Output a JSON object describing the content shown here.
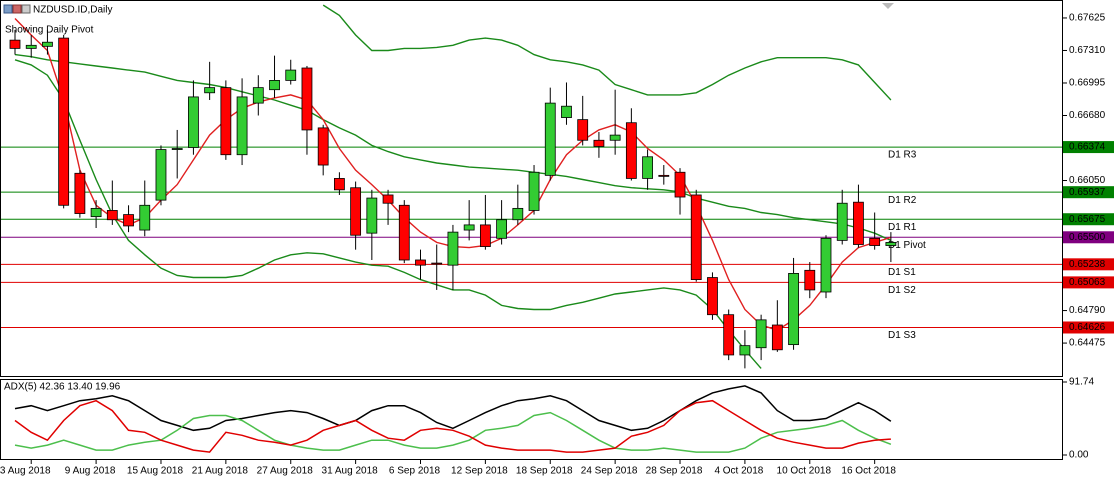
{
  "chart_data": [
    {
      "type": "candlestick",
      "title": "NZDUSD.ID,Daily",
      "subtitle": "Showing Daily Pivot",
      "categories": [
        null,
        "3 Aug 2018",
        null,
        null,
        null,
        "9 Aug 2018",
        null,
        null,
        null,
        "15 Aug 2018",
        null,
        null,
        null,
        "21 Aug 2018",
        null,
        null,
        null,
        "27 Aug 2018",
        null,
        null,
        null,
        "31 Aug 2018",
        null,
        null,
        null,
        "6 Sep 2018",
        null,
        null,
        null,
        "12 Sep 2018",
        null,
        null,
        null,
        "18 Sep 2018",
        null,
        null,
        null,
        "24 Sep 2018",
        null,
        null,
        null,
        "28 Sep 2018",
        null,
        null,
        null,
        "4 Oct 2018",
        null,
        null,
        null,
        "10 Oct 2018",
        null,
        null,
        null,
        "16 Oct 2018",
        null
      ],
      "open": [
        0.6741,
        0.6733,
        0.6735,
        0.6743,
        0.6612,
        0.657,
        0.6576,
        0.6572,
        0.6557,
        0.6586,
        0.6635,
        0.6637,
        0.669,
        0.6695,
        0.663,
        0.668,
        0.6693,
        0.6702,
        0.6714,
        0.6656,
        0.6607,
        0.6598,
        0.6554,
        0.6591,
        0.6581,
        0.6528,
        0.6525,
        0.6523,
        0.6557,
        0.6562,
        0.6549,
        0.6567,
        0.6576,
        0.661,
        0.6666,
        0.6664,
        0.6644,
        0.6644,
        0.6661,
        0.6607,
        0.661,
        0.6613,
        0.6591,
        0.6511,
        0.6475,
        0.6436,
        0.6443,
        0.6465,
        0.6446,
        0.6518,
        0.6497,
        0.6547,
        0.6584,
        0.6549,
        0.6542
      ],
      "high": [
        0.6751,
        0.6746,
        0.6751,
        0.6746,
        0.6615,
        0.6586,
        0.6605,
        0.6581,
        0.6605,
        0.6639,
        0.6654,
        0.6702,
        0.672,
        0.6702,
        0.6704,
        0.6707,
        0.6726,
        0.6722,
        0.6716,
        0.6659,
        0.6613,
        0.6604,
        0.6596,
        0.6596,
        0.6586,
        0.6538,
        0.6543,
        0.6562,
        0.6586,
        0.6591,
        0.6586,
        0.6601,
        0.662,
        0.6695,
        0.67,
        0.6687,
        0.6652,
        0.6693,
        0.6675,
        0.6635,
        0.662,
        0.6617,
        0.6596,
        0.6516,
        0.648,
        0.646,
        0.6475,
        0.6489,
        0.653,
        0.6526,
        0.6552,
        0.6596,
        0.6601,
        0.6574,
        0.6555
      ],
      "low": [
        0.6727,
        0.6724,
        0.6727,
        0.6578,
        0.6569,
        0.6559,
        0.6562,
        0.6555,
        0.6551,
        0.6581,
        0.6607,
        0.663,
        0.6683,
        0.6625,
        0.662,
        0.6668,
        0.6685,
        0.6698,
        0.663,
        0.661,
        0.6591,
        0.6538,
        0.6528,
        0.6562,
        0.6525,
        0.6509,
        0.6499,
        0.6499,
        0.6547,
        0.6538,
        0.6543,
        0.6562,
        0.6572,
        0.6605,
        0.6659,
        0.6639,
        0.6627,
        0.663,
        0.6605,
        0.6596,
        0.6601,
        0.6572,
        0.6507,
        0.647,
        0.6431,
        0.6423,
        0.6431,
        0.6439,
        0.6441,
        0.6491,
        0.6491,
        0.6543,
        0.654,
        0.6538,
        0.6526
      ],
      "close": [
        0.6733,
        0.6736,
        0.6739,
        0.6581,
        0.6573,
        0.6578,
        0.6567,
        0.6561,
        0.6581,
        0.6635,
        0.6636,
        0.6686,
        0.6695,
        0.663,
        0.6686,
        0.6695,
        0.6702,
        0.6712,
        0.6654,
        0.662,
        0.6596,
        0.6552,
        0.6588,
        0.6583,
        0.6528,
        0.6523,
        0.6524,
        0.6555,
        0.6562,
        0.6541,
        0.6567,
        0.6578,
        0.6613,
        0.668,
        0.6677,
        0.6644,
        0.6638,
        0.6649,
        0.6607,
        0.6628,
        0.6609,
        0.6589,
        0.6509,
        0.6475,
        0.6436,
        0.6445,
        0.647,
        0.6441,
        0.6515,
        0.6499,
        0.6549,
        0.6583,
        0.6543,
        0.6542,
        0.6545
      ],
      "up_color": "#33cc33",
      "down_color": "#ff0000",
      "series": [
        {
          "color": "#1a8a1a",
          "values": [
            null,
            null,
            null,
            null,
            null,
            null,
            null,
            null,
            null,
            null,
            null,
            null,
            null,
            null,
            null,
            null,
            null,
            null,
            null,
            0.6775,
            0.6765,
            0.6746,
            0.6731,
            0.6731,
            0.6733,
            0.6733,
            0.6734,
            0.6736,
            0.6741,
            0.6743,
            0.6741,
            0.6736,
            0.6727,
            0.6722,
            0.672,
            0.6717,
            0.6712,
            0.6698,
            0.6693,
            0.6688,
            0.6688,
            0.6688,
            0.669,
            0.6698,
            0.6707,
            0.6714,
            0.672,
            0.6724,
            0.6724,
            0.6724,
            0.6724,
            0.6722,
            0.6717,
            0.67,
            0.6683
          ]
        },
        {
          "color": "#1a8a1a",
          "values": [
            0.6727,
            0.6725,
            0.6722,
            0.672,
            0.6718,
            0.6716,
            0.6714,
            0.6712,
            0.671,
            0.6706,
            0.6702,
            0.67,
            0.6698,
            0.6695,
            0.6691,
            0.6687,
            0.6683,
            0.6678,
            0.6673,
            0.6664,
            0.6656,
            0.6649,
            0.6639,
            0.6633,
            0.6628,
            0.6625,
            0.6622,
            0.662,
            0.6618,
            0.6617,
            0.6616,
            0.6615,
            0.6613,
            0.6611,
            0.6609,
            0.6606,
            0.6603,
            0.66,
            0.6598,
            0.6597,
            0.6596,
            0.6594,
            0.6588,
            0.6584,
            0.658,
            0.6578,
            0.6574,
            0.6572,
            0.6569,
            0.6567,
            0.6565,
            0.6563,
            0.6559,
            0.6554,
            0.6547
          ]
        },
        {
          "color": "#1a8a1a",
          "values": [
            0.6722,
            0.6717,
            0.6707,
            0.6683,
            0.6644,
            0.6606,
            0.6572,
            0.6547,
            0.6533,
            0.652,
            0.6513,
            0.6511,
            0.6511,
            0.6511,
            0.6513,
            0.652,
            0.6528,
            0.6533,
            0.6535,
            0.6534,
            0.653,
            0.6526,
            0.6523,
            0.6522,
            0.6516,
            0.6509,
            0.6504,
            0.6499,
            0.6499,
            0.6494,
            0.6484,
            0.6481,
            0.648,
            0.648,
            0.6484,
            0.6487,
            0.6491,
            0.6495,
            0.6497,
            0.6499,
            0.6501,
            0.6499,
            0.6494,
            0.648,
            0.646,
            0.6441,
            0.6423,
            null,
            null,
            null,
            null,
            null,
            null,
            null,
            null
          ]
        },
        {
          "color": "#e02020",
          "values": [
            0.6762,
            0.6746,
            0.6731,
            0.6683,
            0.6615,
            0.6581,
            0.6569,
            0.6562,
            0.6569,
            0.6586,
            0.6601,
            0.6625,
            0.6649,
            0.6664,
            0.6675,
            0.6681,
            0.6685,
            0.6688,
            0.6683,
            0.6664,
            0.6636,
            0.6615,
            0.6601,
            0.6586,
            0.6569,
            0.6555,
            0.6545,
            0.6541,
            0.654,
            0.6542,
            0.6549,
            0.6562,
            0.6576,
            0.6606,
            0.663,
            0.6644,
            0.6654,
            0.6659,
            0.6652,
            0.6636,
            0.6625,
            0.661,
            0.6581,
            0.6547,
            0.6509,
            0.648,
            0.6465,
            0.646,
            0.647,
            0.6484,
            0.6504,
            0.6526,
            0.654,
            0.6545,
            0.655
          ]
        }
      ],
      "pivots": {
        "names": [
          "D1 R3",
          "D1 R2",
          "D1 R1",
          "D1 Pivot",
          "D1 S1",
          "D1 S2",
          "D1 S3"
        ],
        "values": [
          0.66374,
          0.65937,
          0.65675,
          0.655,
          0.65238,
          0.65063,
          0.64626
        ],
        "value_labels": [
          "0.66374",
          "0.65937",
          "0.65675",
          "0.65500",
          "0.65238",
          "0.65063",
          "0.64626"
        ],
        "colors": [
          "#008000",
          "#008000",
          "#008000",
          "#7f007f",
          "#e00000",
          "#e00000",
          "#e00000"
        ]
      },
      "ylim": [
        0.64156,
        0.67799
      ],
      "yticks": [
        0.67625,
        {
          "value": 0.6731,
          "label": "0.67310"
        },
        0.66995,
        {
          "value": 0.6668,
          "label": "0.66680"
        },
        {
          "value": 0.6605,
          "label": "0.66050"
        },
        {
          "value": 0.6479,
          "label": "0.64790"
        },
        0.64475
      ],
      "grid": false
    },
    {
      "type": "line",
      "legend_text": "ADX(5) 42.36 13.40 19.96",
      "series": [
        {
          "color": "#000000",
          "values": [
            58.3,
            62,
            55.8,
            62,
            68.2,
            70.7,
            74.4,
            68.2,
            55.8,
            43.4,
            37.2,
            31,
            33.5,
            43.4,
            45.9,
            49.6,
            53.3,
            55.8,
            53.3,
            45.9,
            37.2,
            43.4,
            55.8,
            62,
            62,
            53.3,
            40.9,
            33.5,
            43.4,
            53.3,
            62,
            68.2,
            70.7,
            74.4,
            68.2,
            55.8,
            43.4,
            37.2,
            31,
            33.5,
            43.4,
            55.8,
            68.2,
            78.1,
            83.1,
            86.8,
            78.1,
            55.8,
            43.4,
            43.4,
            45.9,
            55.8,
            65.7,
            55.8,
            42.36
          ]
        },
        {
          "color": "#4cbf4c",
          "values": [
            12.4,
            8.7,
            12.4,
            18.6,
            12.4,
            6.2,
            6.2,
            12.4,
            16.1,
            18.6,
            31,
            45.9,
            49.6,
            49.6,
            43.4,
            31,
            18.6,
            12.4,
            8.7,
            6.2,
            6.2,
            12.4,
            18.6,
            18.6,
            12.4,
            8.7,
            8.7,
            12.4,
            18.6,
            31,
            33.5,
            37.2,
            49.6,
            53.3,
            43.4,
            31,
            18.6,
            8.7,
            6.2,
            6.2,
            8.7,
            6.2,
            3.7,
            3.7,
            3.7,
            8.7,
            21.1,
            28.5,
            31,
            33.5,
            37.2,
            43.4,
            31,
            21.1,
            13.4
          ]
        },
        {
          "color": "#e00000",
          "values": [
            43.4,
            28.5,
            18.6,
            43.4,
            62,
            68.2,
            55.8,
            31,
            28.5,
            18.6,
            12.4,
            6.2,
            3.7,
            28.5,
            24.8,
            18.6,
            16.1,
            12.4,
            18.6,
            31,
            37.2,
            43.4,
            31,
            21.1,
            18.6,
            31,
            33.5,
            31,
            23.6,
            12.4,
            8.7,
            6.2,
            6.2,
            6.2,
            3.7,
            3.7,
            6.2,
            8.7,
            23.6,
            28.5,
            37.2,
            55.8,
            65.7,
            68.2,
            55.8,
            43.4,
            31,
            21.1,
            16.1,
            12.4,
            8.7,
            8.7,
            14.9,
            18.6,
            19.96
          ]
        }
      ],
      "ylim": [
        0,
        91.74
      ],
      "yticks": [
        91.74,
        {
          "value": 0,
          "label": "0.00"
        }
      ]
    }
  ]
}
